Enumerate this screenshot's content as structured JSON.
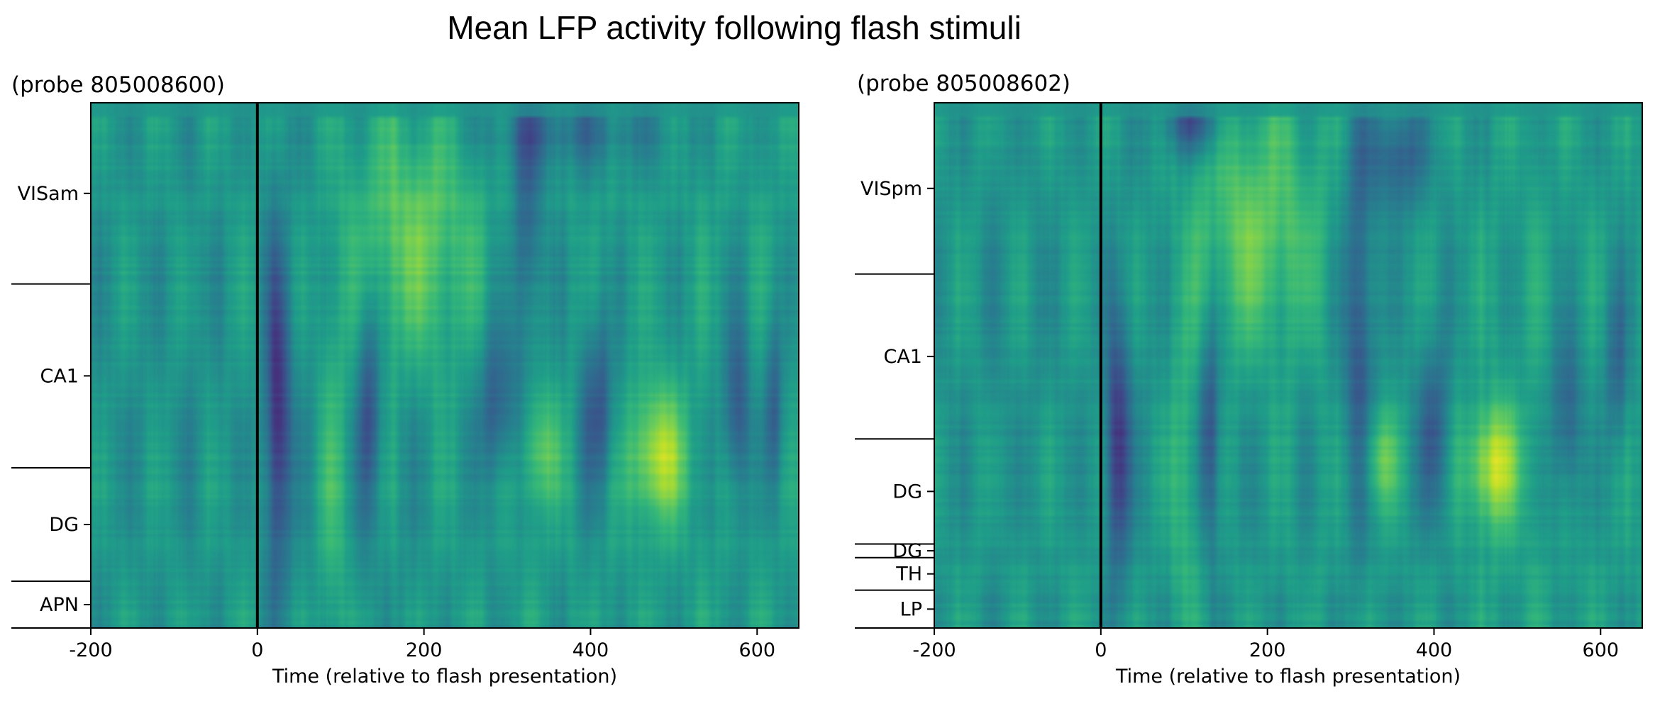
{
  "title": "Mean LFP activity following flash stimuli",
  "chart_data": [
    {
      "type": "heatmap",
      "title": "(probe 805008600)",
      "xlabel": "Time (relative to flash presentation)",
      "ylabel": "",
      "xlim": [
        -200,
        650
      ],
      "xticks": [
        -200,
        0,
        200,
        400,
        600
      ],
      "stimulus_onset": 0,
      "colormap": "viridis",
      "regions": [
        {
          "label": "VISam",
          "from": 0.0,
          "to": 0.345
        },
        {
          "label": "CA1",
          "from": 0.345,
          "to": 0.695
        },
        {
          "label": "DG",
          "from": 0.695,
          "to": 0.911
        },
        {
          "label": "APN",
          "from": 0.911,
          "to": 1.0
        }
      ],
      "features": [
        {
          "t": 25,
          "pos": 0.6,
          "st": 10,
          "sd": 0.22,
          "amp": -1.35
        },
        {
          "t": 135,
          "pos": 0.57,
          "st": 9,
          "sd": 0.16,
          "amp": -0.95
        },
        {
          "t": 290,
          "pos": 0.57,
          "st": 18,
          "sd": 0.1,
          "amp": -0.8
        },
        {
          "t": 325,
          "pos": 0.22,
          "st": 12,
          "sd": 0.18,
          "amp": -0.9
        },
        {
          "t": 375,
          "pos": 0.05,
          "st": 80,
          "sd": 0.05,
          "amp": -0.6
        },
        {
          "t": 410,
          "pos": 0.58,
          "st": 14,
          "sd": 0.12,
          "amp": -0.9
        },
        {
          "t": 575,
          "pos": 0.58,
          "st": 12,
          "sd": 0.12,
          "amp": -0.9
        },
        {
          "t": 620,
          "pos": 0.58,
          "st": 8,
          "sd": 0.12,
          "amp": -0.8
        },
        {
          "t": 185,
          "pos": 0.26,
          "st": 55,
          "sd": 0.17,
          "amp": 0.85
        },
        {
          "t": 480,
          "pos": 0.67,
          "st": 24,
          "sd": 0.09,
          "amp": 1.3
        },
        {
          "t": 340,
          "pos": 0.66,
          "st": 18,
          "sd": 0.08,
          "amp": 0.8
        },
        {
          "t": 90,
          "pos": 0.72,
          "st": 12,
          "sd": 0.25,
          "amp": 0.5
        },
        {
          "t": 0,
          "pos": 0.5,
          "st": 220,
          "sd": 0.45,
          "amp": -0.15
        }
      ]
    },
    {
      "type": "heatmap",
      "title": "(probe 805008602)",
      "xlabel": "Time (relative to flash presentation)",
      "ylabel": "",
      "xlim": [
        -200,
        650
      ],
      "xticks": [
        -200,
        0,
        200,
        400,
        600
      ],
      "stimulus_onset": 0,
      "colormap": "viridis",
      "regions": [
        {
          "label": "VISpm",
          "from": 0.0,
          "to": 0.326
        },
        {
          "label": "CA1",
          "from": 0.326,
          "to": 0.64
        },
        {
          "label": "DG",
          "from": 0.64,
          "to": 0.84
        },
        {
          "label": "DG",
          "from": 0.84,
          "to": 0.866
        },
        {
          "label": "TH",
          "from": 0.866,
          "to": 0.928
        },
        {
          "label": "LP",
          "from": 0.928,
          "to": 1.0
        }
      ],
      "features": [
        {
          "t": 20,
          "pos": 0.66,
          "st": 10,
          "sd": 0.17,
          "amp": -1.35
        },
        {
          "t": 130,
          "pos": 0.63,
          "st": 9,
          "sd": 0.14,
          "amp": -0.95
        },
        {
          "t": 310,
          "pos": 0.42,
          "st": 14,
          "sd": 0.28,
          "amp": -0.9
        },
        {
          "t": 110,
          "pos": 0.04,
          "st": 25,
          "sd": 0.04,
          "amp": -1.0
        },
        {
          "t": 355,
          "pos": 0.1,
          "st": 25,
          "sd": 0.07,
          "amp": -0.8
        },
        {
          "t": 400,
          "pos": 0.63,
          "st": 12,
          "sd": 0.12,
          "amp": -0.9
        },
        {
          "t": 560,
          "pos": 0.6,
          "st": 12,
          "sd": 0.12,
          "amp": -0.9
        },
        {
          "t": 620,
          "pos": 0.5,
          "st": 10,
          "sd": 0.12,
          "amp": -0.7
        },
        {
          "t": 185,
          "pos": 0.24,
          "st": 55,
          "sd": 0.17,
          "amp": 0.85
        },
        {
          "t": 470,
          "pos": 0.69,
          "st": 22,
          "sd": 0.08,
          "amp": 1.3
        },
        {
          "t": 335,
          "pos": 0.68,
          "st": 16,
          "sd": 0.07,
          "amp": 0.8
        },
        {
          "t": 100,
          "pos": 0.7,
          "st": 12,
          "sd": 0.22,
          "amp": 0.6
        },
        {
          "t": 0,
          "pos": 0.5,
          "st": 220,
          "sd": 0.45,
          "amp": -0.15
        }
      ]
    }
  ]
}
